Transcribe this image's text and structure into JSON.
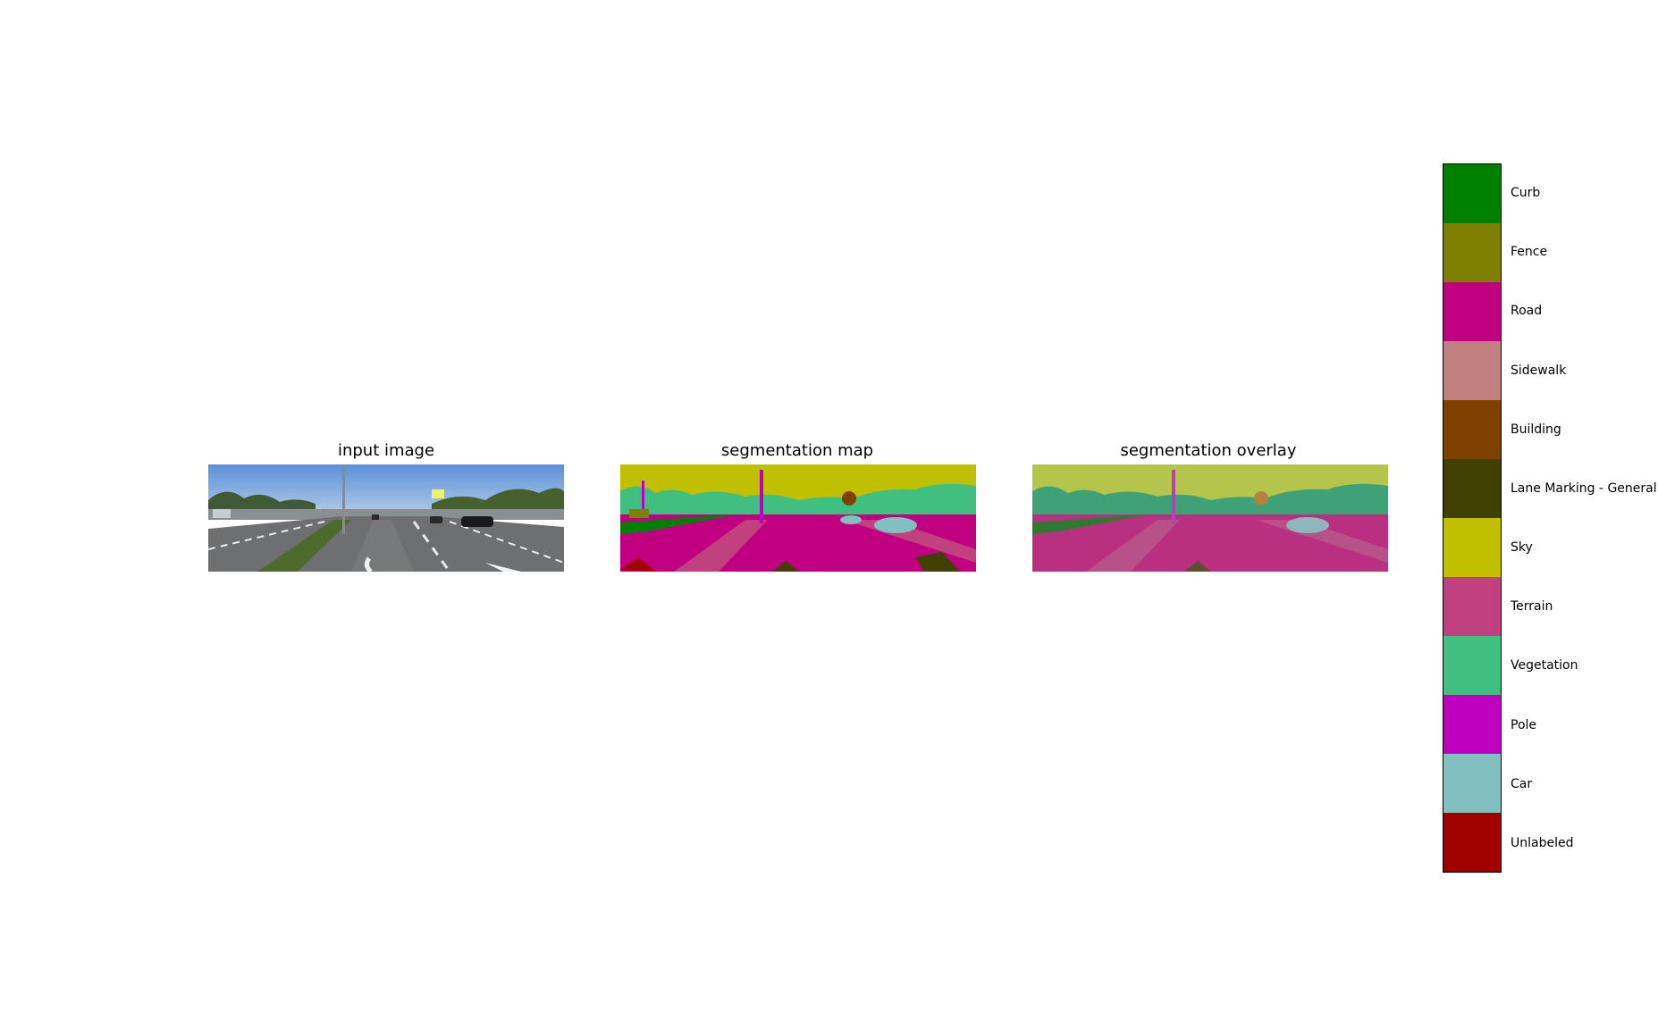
{
  "panels": [
    {
      "title": "input image"
    },
    {
      "title": "segmentation map"
    },
    {
      "title": "segmentation overlay"
    }
  ],
  "legend": [
    {
      "label": "Curb",
      "color": "#008000"
    },
    {
      "label": "Fence",
      "color": "#808000"
    },
    {
      "label": "Road",
      "color": "#c00080"
    },
    {
      "label": "Sidewalk",
      "color": "#c08080"
    },
    {
      "label": "Building",
      "color": "#804000"
    },
    {
      "label": "Lane Marking - General",
      "color": "#404000"
    },
    {
      "label": "Sky",
      "color": "#c0c000"
    },
    {
      "label": "Terrain",
      "color": "#c04080"
    },
    {
      "label": "Vegetation",
      "color": "#40c080"
    },
    {
      "label": "Pole",
      "color": "#c000c0"
    },
    {
      "label": "Car",
      "color": "#80c0c0"
    },
    {
      "label": "Unlabeled",
      "color": "#a00000"
    }
  ]
}
